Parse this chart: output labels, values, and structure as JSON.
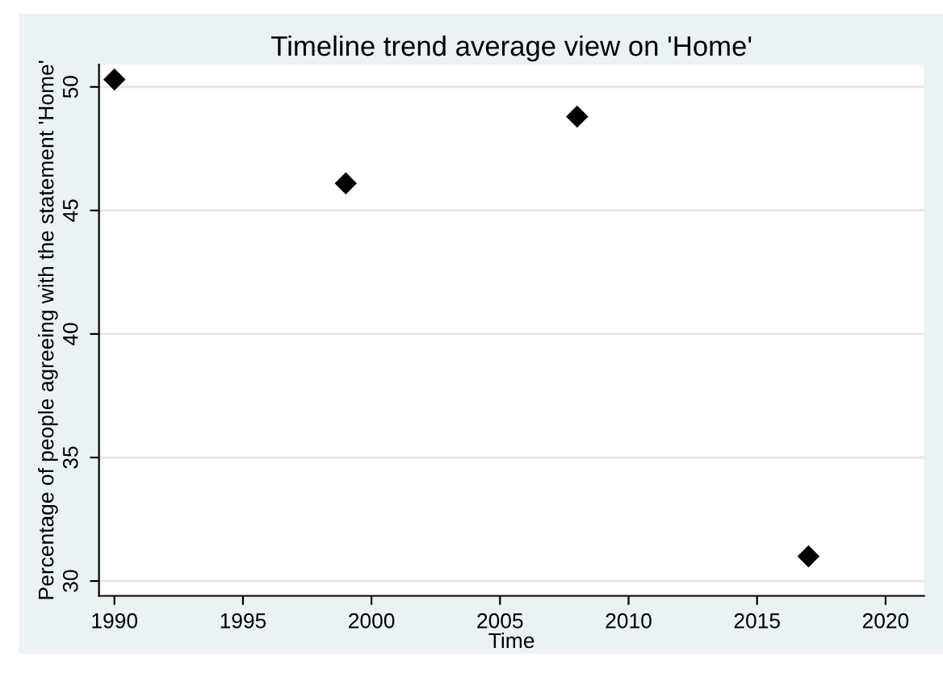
{
  "chart_data": {
    "type": "scatter",
    "title": "Timeline trend average view on 'Home'",
    "xlabel": "Time",
    "ylabel": "Percentage of people agreeing with the statement 'Home'",
    "x": [
      1990,
      1999,
      2008,
      2017
    ],
    "values": [
      50.3,
      46.1,
      48.8,
      31.0
    ],
    "color": "#000000",
    "marker": "diamond",
    "xlim": [
      1989.4,
      2021.5
    ],
    "xticks": [
      1990,
      1995,
      2000,
      2005,
      2010,
      2015,
      2020
    ],
    "ylim": [
      29.4,
      50.9
    ],
    "yticks": [
      30,
      35,
      40,
      45,
      50
    ],
    "grid": "y",
    "legend": false
  }
}
